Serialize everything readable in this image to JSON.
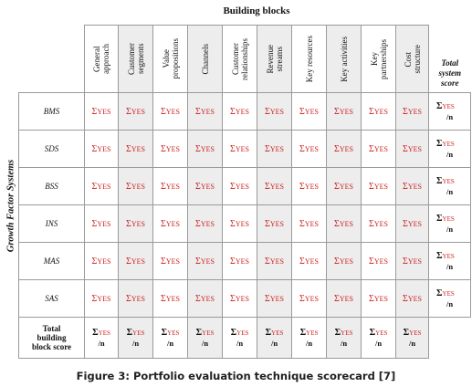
{
  "top_title": "Building blocks",
  "side_title": "Growth Factor Systems",
  "columns": [
    {
      "label": "General\napproach"
    },
    {
      "label": "Customer\nsegments"
    },
    {
      "label": "Value\npropositions"
    },
    {
      "label": "Channels"
    },
    {
      "label": "Customer\nrelationships"
    },
    {
      "label": "Revenue\nstreams"
    },
    {
      "label": "Key resources"
    },
    {
      "label": "Key activities"
    },
    {
      "label": "Key\npartnerships"
    },
    {
      "label": "Cost\nstructure"
    }
  ],
  "total_system_header": "Total\nsystem\nscore",
  "rows": [
    "BMS",
    "SDS",
    "BSS",
    "INS",
    "MAS",
    "SAS"
  ],
  "cell_sigma": "Σ",
  "cell_yes": "YES",
  "score_over": "/n",
  "total_block_label": "Total\nbuilding\nblock score",
  "caption": "Figure 3: Portfolio evaluation technique scorecard [7]"
}
